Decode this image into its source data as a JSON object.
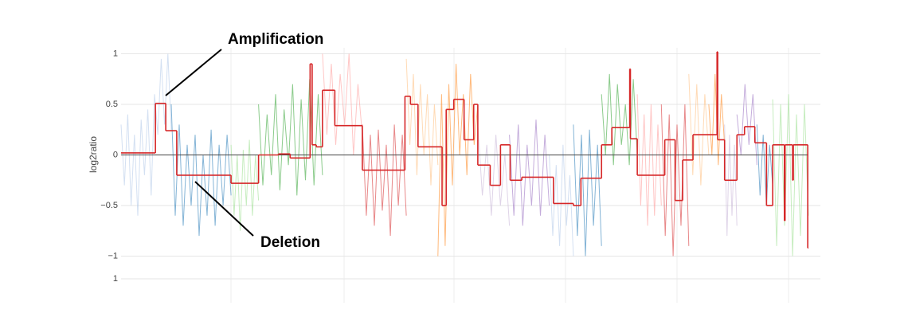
{
  "chart_data": {
    "type": "segmentation",
    "y_label": "log2ratio",
    "xlim": [
      0,
      1000
    ],
    "ylim": [
      -1.02,
      1.02
    ],
    "yticks": [
      {
        "value": -1,
        "label": "−1"
      },
      {
        "value": -0.5,
        "label": "−0.5"
      },
      0,
      0.5,
      1
    ],
    "grid": true,
    "annotations": [
      {
        "text": "Amplification"
      },
      {
        "text": "Deletion"
      }
    ],
    "segment_color": "#d62728",
    "segments": [
      {
        "start": 0,
        "end": 50,
        "value": 0.02
      },
      {
        "start": 50,
        "end": 65,
        "value": 0.51
      },
      {
        "start": 65,
        "end": 81,
        "value": 0.24
      },
      {
        "start": 81,
        "end": 160,
        "value": -0.2
      },
      {
        "start": 160,
        "end": 200,
        "value": -0.28
      },
      {
        "start": 200,
        "end": 229,
        "value": 0
      },
      {
        "start": 229,
        "end": 246,
        "value": 0.01
      },
      {
        "start": 246,
        "end": 275,
        "value": -0.03
      },
      {
        "start": 275,
        "end": 278,
        "value": 0.9
      },
      {
        "start": 278,
        "end": 284,
        "value": 0.1
      },
      {
        "start": 284,
        "end": 293,
        "value": 0.08
      },
      {
        "start": 293,
        "end": 311,
        "value": 0.64
      },
      {
        "start": 311,
        "end": 351,
        "value": 0.29
      },
      {
        "start": 351,
        "end": 413,
        "value": -0.15
      },
      {
        "start": 413,
        "end": 421,
        "value": 0.58
      },
      {
        "start": 421,
        "end": 432,
        "value": 0.5
      },
      {
        "start": 432,
        "end": 467,
        "value": 0.08
      },
      {
        "start": 467,
        "end": 473,
        "value": -0.5
      },
      {
        "start": 473,
        "end": 484,
        "value": 0.45
      },
      {
        "start": 484,
        "end": 499,
        "value": 0.55
      },
      {
        "start": 499,
        "end": 513,
        "value": 0.15
      },
      {
        "start": 513,
        "end": 519,
        "value": 0.5
      },
      {
        "start": 519,
        "end": 537,
        "value": -0.1
      },
      {
        "start": 537,
        "end": 552,
        "value": -0.3
      },
      {
        "start": 552,
        "end": 566,
        "value": 0.1
      },
      {
        "start": 566,
        "end": 583,
        "value": -0.25
      },
      {
        "start": 583,
        "end": 629,
        "value": -0.22
      },
      {
        "start": 629,
        "end": 658,
        "value": -0.48
      },
      {
        "start": 658,
        "end": 669,
        "value": -0.5
      },
      {
        "start": 669,
        "end": 699,
        "value": -0.23
      },
      {
        "start": 699,
        "end": 714,
        "value": 0.1
      },
      {
        "start": 714,
        "end": 740,
        "value": 0.27
      },
      {
        "start": 740,
        "end": 741,
        "value": 0.85
      },
      {
        "start": 741,
        "end": 751,
        "value": 0.16
      },
      {
        "start": 751,
        "end": 791,
        "value": -0.2
      },
      {
        "start": 791,
        "end": 806,
        "value": 0.15
      },
      {
        "start": 806,
        "end": 817,
        "value": -0.45
      },
      {
        "start": 817,
        "end": 832,
        "value": -0.05
      },
      {
        "start": 832,
        "end": 867,
        "value": 0.2
      },
      {
        "start": 867,
        "end": 868,
        "value": 1.02
      },
      {
        "start": 868,
        "end": 878,
        "value": 0.15
      },
      {
        "start": 878,
        "end": 896,
        "value": -0.25
      },
      {
        "start": 896,
        "end": 907,
        "value": 0.2
      },
      {
        "start": 907,
        "end": 922,
        "value": 0.28
      },
      {
        "start": 922,
        "end": 939,
        "value": 0.12
      },
      {
        "start": 939,
        "end": 948,
        "value": -0.5
      },
      {
        "start": 948,
        "end": 965,
        "value": 0.1
      },
      {
        "start": 965,
        "end": 966,
        "value": -0.65
      },
      {
        "start": 966,
        "end": 977,
        "value": 0.1
      },
      {
        "start": 977,
        "end": 978,
        "value": -0.25
      },
      {
        "start": 978,
        "end": 999,
        "value": 0.1
      },
      {
        "start": 999,
        "end": 1000,
        "value": -0.92
      }
    ],
    "regions": [
      {
        "start": 0,
        "end": 73,
        "color": "#aec7e8",
        "values": [
          0.3,
          -0.3,
          0.4,
          -0.5,
          0.2,
          -0.6,
          0.35,
          -0.2,
          0.45,
          -0.4,
          0.6,
          0.2,
          0.95,
          0.3,
          1.0,
          0.25
        ]
      },
      {
        "start": 73,
        "end": 160,
        "color": "#1f77b4",
        "values": [
          0.5,
          -0.6,
          0.3,
          -0.7,
          0.1,
          -0.5,
          0.2,
          -0.8,
          0.0,
          -0.6,
          0.25,
          -0.7,
          0.1,
          -0.5,
          0.2,
          -0.4
        ]
      },
      {
        "start": 160,
        "end": 200,
        "color": "#98df8a",
        "values": [
          0.1,
          -0.6,
          0.0,
          -0.75,
          0.05,
          -0.5,
          0.15,
          -0.6,
          0.0,
          -0.45
        ]
      },
      {
        "start": 200,
        "end": 293,
        "color": "#2ca02c",
        "values": [
          0.5,
          -0.3,
          0.4,
          -0.2,
          0.6,
          -0.35,
          0.45,
          -0.1,
          0.7,
          -0.4,
          0.55,
          -0.25,
          0.75,
          -0.3,
          0.6,
          -0.2
        ]
      },
      {
        "start": 293,
        "end": 351,
        "color": "#ff9896",
        "values": [
          1.0,
          0.2,
          0.9,
          0.1,
          0.8,
          0.3,
          1.0,
          0.0,
          0.7,
          0.2
        ]
      },
      {
        "start": 351,
        "end": 415,
        "color": "#d62728",
        "values": [
          0.3,
          -0.6,
          0.2,
          -0.7,
          0.25,
          -0.55,
          0.1,
          -0.8,
          0.3,
          -0.5,
          0.2,
          -0.6
        ]
      },
      {
        "start": 415,
        "end": 461,
        "color": "#ffbb78",
        "values": [
          0.95,
          0.1,
          0.8,
          -0.2,
          0.7,
          0.0,
          0.6,
          -0.3,
          0.5,
          -0.1
        ]
      },
      {
        "start": 461,
        "end": 519,
        "color": "#ff7f0e",
        "values": [
          -1.0,
          0.6,
          -0.9,
          0.7,
          -0.3,
          0.9,
          0.0,
          0.6,
          -0.2,
          0.8,
          0.1,
          0.5
        ]
      },
      {
        "start": 519,
        "end": 565,
        "color": "#c5b0d5",
        "values": [
          0.3,
          -0.4,
          0.1,
          -0.6,
          0.2,
          -0.5,
          0.0,
          -0.7
        ]
      },
      {
        "start": 565,
        "end": 623,
        "color": "#9467bd",
        "values": [
          0.2,
          -0.6,
          0.3,
          -0.7,
          0.1,
          -0.5,
          0.35,
          -0.6,
          0.2,
          -0.5
        ]
      },
      {
        "start": 623,
        "end": 658,
        "color": "#aec7e8",
        "values": [
          0.0,
          -0.8,
          -0.1,
          -0.9,
          0.1,
          -0.7,
          -0.2,
          -1.0
        ]
      },
      {
        "start": 658,
        "end": 699,
        "color": "#1f77b4",
        "values": [
          0.3,
          -0.8,
          0.2,
          -1.0,
          0.25,
          -0.7,
          0.1,
          -0.9
        ]
      },
      {
        "start": 699,
        "end": 751,
        "color": "#2ca02c",
        "values": [
          0.6,
          0.0,
          0.8,
          -0.1,
          0.7,
          0.1,
          0.5,
          -0.1,
          0.75,
          0.0
        ]
      },
      {
        "start": 751,
        "end": 786,
        "color": "#ff9896",
        "values": [
          0.6,
          -0.5,
          0.4,
          -0.7,
          0.5,
          -0.6,
          0.3,
          -0.5
        ]
      },
      {
        "start": 786,
        "end": 826,
        "color": "#d62728",
        "values": [
          0.5,
          -0.8,
          0.4,
          -1.0,
          0.3,
          -0.7,
          0.5,
          -0.9
        ]
      },
      {
        "start": 826,
        "end": 855,
        "color": "#ffbb78",
        "values": [
          0.8,
          -0.2,
          0.7,
          -0.3,
          0.6,
          0.0
        ]
      },
      {
        "start": 855,
        "end": 878,
        "color": "#ff7f0e",
        "values": [
          0.5,
          0.0,
          0.8,
          -0.1,
          0.6,
          0.1
        ]
      },
      {
        "start": 878,
        "end": 896,
        "color": "#c5b0d5",
        "values": [
          0.3,
          -0.8,
          0.2,
          -0.6,
          0.1,
          -0.7
        ]
      },
      {
        "start": 896,
        "end": 925,
        "color": "#9467bd",
        "values": [
          0.4,
          0.0,
          0.7,
          0.1,
          0.6,
          -0.1
        ]
      },
      {
        "start": 925,
        "end": 948,
        "color": "#1f77b4",
        "values": [
          0.3,
          -0.4,
          0.2,
          -0.5,
          0.1,
          -0.3
        ]
      },
      {
        "start": 948,
        "end": 1000,
        "color": "#98df8a",
        "values": [
          0.55,
          -0.9,
          0.5,
          -0.7,
          0.6,
          -1.0,
          0.4,
          -0.8,
          0.5,
          -0.6
        ]
      }
    ],
    "lower_panel": {
      "yticks": [
        1
      ]
    }
  }
}
